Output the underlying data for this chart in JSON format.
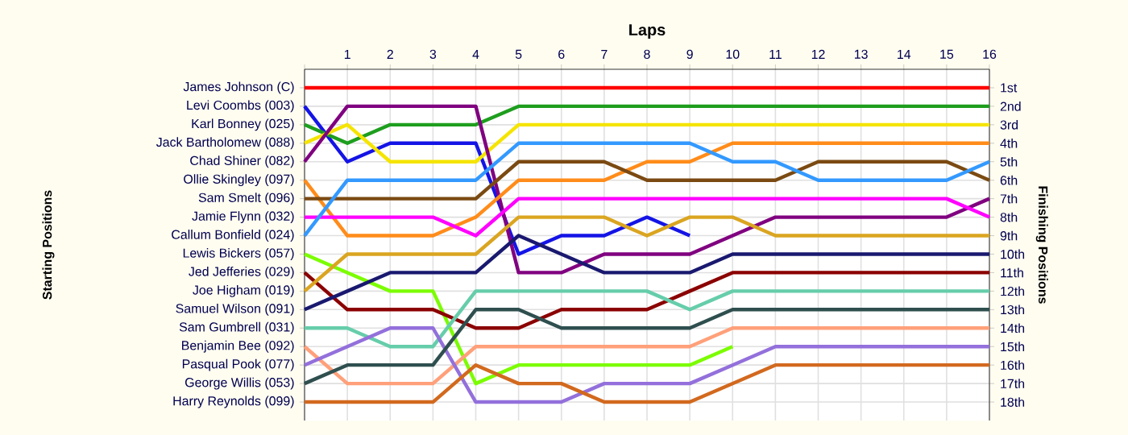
{
  "chart_data": {
    "type": "line",
    "xlabel": "Laps",
    "y2label": "Finishing Positions",
    "annotations": [
      "Starting Positions"
    ],
    "x": [
      0,
      1,
      2,
      3,
      4,
      5,
      6,
      7,
      8,
      9,
      10,
      11,
      12,
      13,
      14,
      15,
      16
    ],
    "xlim": [
      0,
      16
    ],
    "xticks": [
      {
        "value": 0,
        "label": null
      },
      1,
      2,
      3,
      4,
      5,
      6,
      7,
      8,
      9,
      10,
      11,
      12,
      13,
      14,
      15,
      16
    ],
    "y2lim": [
      19,
      0
    ],
    "y2ticks": [
      {
        "value": 1,
        "label": "1st"
      },
      {
        "value": 2,
        "label": "2nd"
      },
      {
        "value": 3,
        "label": "3rd"
      },
      {
        "value": 4,
        "label": "4th"
      },
      {
        "value": 5,
        "label": "5th"
      },
      {
        "value": 6,
        "label": "6th"
      },
      {
        "value": 7,
        "label": "7th"
      },
      {
        "value": 8,
        "label": "8th"
      },
      {
        "value": 9,
        "label": "9th"
      },
      {
        "value": 10,
        "label": "10th"
      },
      {
        "value": 11,
        "label": "11th"
      },
      {
        "value": 12,
        "label": "12th"
      },
      {
        "value": 13,
        "label": "13th"
      },
      {
        "value": 14,
        "label": "14th"
      },
      {
        "value": 15,
        "label": "15th"
      },
      {
        "value": 16,
        "label": "16th"
      },
      {
        "value": 17,
        "label": "17th"
      },
      {
        "value": 18,
        "label": "18th"
      }
    ],
    "grid": true,
    "series": [
      {
        "name": "James Johnson (C)",
        "axis": "y2",
        "color": "#ff0000",
        "values": [
          1,
          1,
          1,
          1,
          1,
          1,
          1,
          1,
          1,
          1,
          1,
          1,
          1,
          1,
          1,
          1,
          1
        ]
      },
      {
        "name": "Levi Coombs (003)",
        "axis": "y2",
        "color": "#1414e6",
        "values": [
          2,
          5,
          4,
          4,
          4,
          10,
          9,
          9,
          8,
          9,
          null,
          null,
          null,
          null,
          null,
          null,
          null
        ]
      },
      {
        "name": "Karl Bonney (025)",
        "axis": "y2",
        "color": "#1e9e1e",
        "values": [
          3,
          4,
          3,
          3,
          3,
          2,
          2,
          2,
          2,
          2,
          2,
          2,
          2,
          2,
          2,
          2,
          2
        ]
      },
      {
        "name": "Jack Bartholomew (088)",
        "axis": "y2",
        "color": "#f5e400",
        "values": [
          4,
          3,
          5,
          5,
          5,
          3,
          3,
          3,
          3,
          3,
          3,
          3,
          3,
          3,
          3,
          3,
          3
        ]
      },
      {
        "name": "Chad Shiner (082)",
        "axis": "y2",
        "color": "#800080",
        "values": [
          5,
          2,
          2,
          2,
          2,
          11,
          11,
          10,
          10,
          10,
          9,
          8,
          8,
          8,
          8,
          8,
          7
        ]
      },
      {
        "name": "Ollie Skingley (097)",
        "axis": "y2",
        "color": "#ff8c1a",
        "values": [
          6,
          9,
          9,
          9,
          8,
          6,
          6,
          6,
          5,
          5,
          4,
          4,
          4,
          4,
          4,
          4,
          4
        ]
      },
      {
        "name": "Sam Smelt (096)",
        "axis": "y2",
        "color": "#7b4a12",
        "values": [
          7,
          7,
          7,
          7,
          7,
          5,
          5,
          5,
          6,
          6,
          6,
          6,
          5,
          5,
          5,
          5,
          6
        ]
      },
      {
        "name": "Jamie Flynn (032)",
        "axis": "y2",
        "color": "#ff00ff",
        "values": [
          8,
          8,
          8,
          8,
          9,
          7,
          7,
          7,
          7,
          7,
          7,
          7,
          7,
          7,
          7,
          7,
          8
        ]
      },
      {
        "name": "Callum Bonfield (024)",
        "axis": "y2",
        "color": "#3399ff",
        "values": [
          9,
          6,
          6,
          6,
          6,
          4,
          4,
          4,
          4,
          4,
          5,
          5,
          6,
          6,
          6,
          6,
          5
        ]
      },
      {
        "name": "Lewis Bickers (057)",
        "axis": "y2",
        "color": "#7cfc00",
        "values": [
          10,
          11,
          12,
          12,
          17,
          16,
          16,
          16,
          16,
          16,
          15,
          null,
          null,
          null,
          null,
          null,
          null
        ]
      },
      {
        "name": "Jed Jefferies (029)",
        "axis": "y2",
        "color": "#8b0000",
        "values": [
          11,
          13,
          13,
          13,
          14,
          14,
          13,
          13,
          13,
          12,
          11,
          11,
          11,
          11,
          11,
          11,
          11
        ]
      },
      {
        "name": "Joe Higham (019)",
        "axis": "y2",
        "color": "#daa520",
        "values": [
          12,
          10,
          10,
          10,
          10,
          8,
          8,
          8,
          9,
          8,
          8,
          9,
          9,
          9,
          9,
          9,
          9
        ]
      },
      {
        "name": "Samuel Wilson (091)",
        "axis": "y2",
        "color": "#191970",
        "values": [
          13,
          12,
          11,
          11,
          11,
          9,
          10,
          11,
          11,
          11,
          10,
          10,
          10,
          10,
          10,
          10,
          10
        ]
      },
      {
        "name": "Sam Gumbrell (031)",
        "axis": "y2",
        "color": "#66cdaa",
        "values": [
          14,
          14,
          15,
          15,
          12,
          12,
          12,
          12,
          12,
          13,
          12,
          12,
          12,
          12,
          12,
          12,
          12
        ]
      },
      {
        "name": "Benjamin Bee (092)",
        "axis": "y2",
        "color": "#ffa07a",
        "values": [
          15,
          17,
          17,
          17,
          15,
          15,
          15,
          15,
          15,
          15,
          14,
          14,
          14,
          14,
          14,
          14,
          14
        ]
      },
      {
        "name": "Pasqual Pook (077)",
        "axis": "y2",
        "color": "#9370db",
        "values": [
          16,
          15,
          14,
          14,
          18,
          18,
          18,
          17,
          17,
          17,
          16,
          15,
          15,
          15,
          15,
          15,
          15
        ]
      },
      {
        "name": "George Willis (053)",
        "axis": "y2",
        "color": "#2f4f4f",
        "values": [
          17,
          16,
          16,
          16,
          13,
          13,
          14,
          14,
          14,
          14,
          13,
          13,
          13,
          13,
          13,
          13,
          13
        ]
      },
      {
        "name": "Harry Reynolds (099)",
        "axis": "y2",
        "color": "#d2691e",
        "values": [
          18,
          18,
          18,
          18,
          16,
          17,
          17,
          18,
          18,
          18,
          17,
          16,
          16,
          16,
          16,
          16,
          16
        ]
      }
    ]
  }
}
